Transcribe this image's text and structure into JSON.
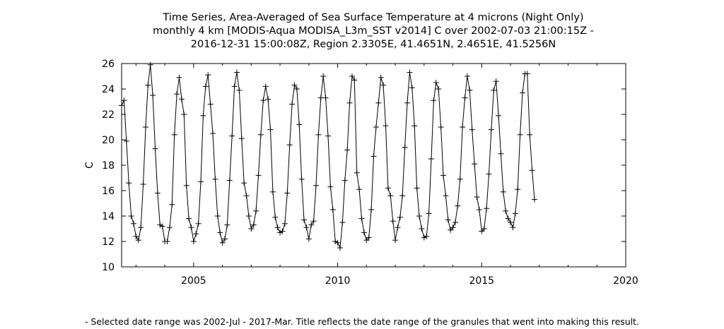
{
  "title_lines": [
    "Time Series, Area-Averaged of Sea Surface Temperature at 4 microns (Night Only)",
    "monthly 4 km [MODIS-Aqua MODISA_L3m_SST v2014] C over 2002-07-03 21:00:15Z -",
    "2016-12-31 15:00:08Z, Region 2.3305E, 41.4651N, 2.4651E, 41.5256N"
  ],
  "footnote": "- Selected date range was 2002-Jul - 2017-Mar. Title reflects the date range of the granules that went into making this result.",
  "chart_data": {
    "type": "line",
    "title": "Time Series, Area-Averaged of Sea Surface Temperature at 4 microns (Night Only)",
    "xlabel": "",
    "ylabel": "C",
    "xlim": [
      2002.5,
      2020
    ],
    "ylim": [
      10,
      26
    ],
    "xticks": [
      2005,
      2010,
      2015,
      2020
    ],
    "yticks": [
      10,
      12,
      14,
      16,
      18,
      20,
      22,
      24,
      26
    ],
    "marker": "plus",
    "grid": false,
    "series": [
      {
        "name": "Sea Surface Temperature",
        "start": "2002-07",
        "values": [
          22.7,
          23.1,
          19.9,
          16.6,
          14.0,
          13.4,
          12.4,
          12.1,
          13.1,
          16.5,
          21.0,
          24.3,
          25.9,
          23.5,
          19.3,
          15.8,
          13.3,
          13.2,
          12.0,
          12.0,
          13.1,
          14.9,
          20.4,
          23.6,
          24.9,
          23.2,
          22.0,
          16.4,
          13.8,
          13.1,
          12.0,
          12.6,
          13.4,
          16.7,
          21.9,
          24.2,
          25.1,
          22.8,
          20.5,
          16.9,
          14.0,
          12.7,
          11.9,
          12.2,
          13.3,
          16.8,
          20.3,
          24.2,
          25.3,
          23.9,
          20.1,
          16.6,
          15.6,
          14.0,
          13.0,
          13.3,
          14.4,
          17.2,
          20.4,
          23.1,
          24.2,
          23.2,
          20.8,
          15.9,
          13.9,
          13.1,
          12.7,
          12.8,
          13.4,
          15.8,
          19.6,
          22.8,
          24.3,
          24.0,
          21.2,
          16.9,
          13.7,
          13.1,
          12.2,
          13.3,
          13.6,
          16.4,
          20.4,
          23.3,
          25.0,
          23.3,
          20.3,
          16.3,
          14.5,
          12.0,
          11.9,
          11.5,
          13.5,
          16.8,
          19.2,
          22.9,
          25.0,
          24.7,
          17.4,
          16.1,
          13.8,
          12.7,
          12.1,
          12.3,
          14.5,
          18.7,
          21.0,
          22.9,
          24.9,
          24.3,
          21.1,
          16.2,
          15.6,
          13.6,
          12.1,
          13.1,
          13.9,
          15.6,
          19.4,
          22.9,
          25.3,
          24.1,
          21.1,
          16.2,
          14.0,
          13.0,
          12.3,
          12.4,
          14.2,
          18.5,
          23.1,
          24.5,
          24.0,
          21.0,
          17.2,
          15.6,
          13.7,
          12.9,
          13.1,
          13.5,
          14.8,
          16.9,
          21.0,
          23.3,
          25.0,
          23.9,
          20.8,
          18.1,
          15.5,
          14.5,
          12.8,
          13.0,
          14.6,
          17.3,
          20.8,
          23.9,
          24.6,
          21.9,
          18.9,
          15.9,
          14.4,
          13.8,
          13.5,
          13.1,
          14.2,
          16.1,
          20.4,
          23.7,
          25.2,
          25.2,
          20.4,
          17.6,
          15.3
        ]
      }
    ]
  }
}
